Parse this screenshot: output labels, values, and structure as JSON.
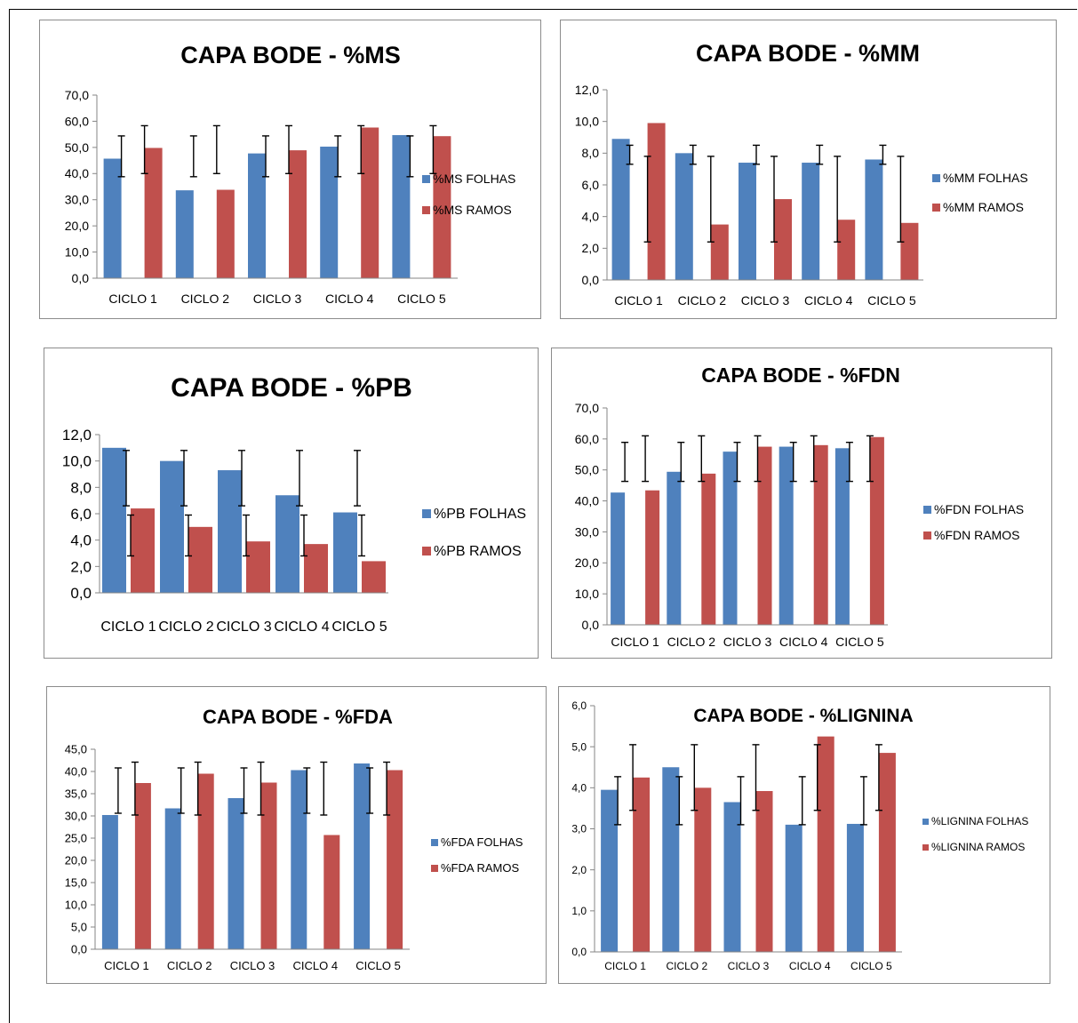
{
  "chart_data": [
    {
      "type": "bar",
      "title": "CAPA BODE - %MS",
      "categories": [
        "CICLO 1",
        "CICLO 2",
        "CICLO 3",
        "CICLO 4",
        "CICLO 5"
      ],
      "ylim": [
        0,
        70
      ],
      "yticks": [
        "0,0",
        "10,0",
        "20,0",
        "30,0",
        "40,0",
        "50,0",
        "60,0",
        "70,0"
      ],
      "legend_position": "right",
      "grid": false,
      "series": [
        {
          "name": "%MS FOLHAS",
          "color": "#4f81bd",
          "values": [
            45.7,
            33.6,
            47.7,
            50.3,
            54.7
          ],
          "error_low": [
            38.8,
            38.8,
            38.8,
            38.8,
            38.8
          ],
          "error_high": [
            54.4,
            54.4,
            54.4,
            54.4,
            54.4
          ]
        },
        {
          "name": "%MS RAMOS",
          "color": "#c0504d",
          "values": [
            49.8,
            33.8,
            48.9,
            57.6,
            54.3
          ],
          "error_low": [
            40.0,
            40.0,
            40.0,
            40.0,
            40.0
          ],
          "error_high": [
            58.3,
            58.3,
            58.3,
            58.3,
            58.3
          ]
        }
      ]
    },
    {
      "type": "bar",
      "title": "CAPA BODE - %MM",
      "categories": [
        "CICLO 1",
        "CICLO 2",
        "CICLO 3",
        "CICLO 4",
        "CICLO 5"
      ],
      "ylim": [
        0,
        12
      ],
      "yticks": [
        "0,0",
        "2,0",
        "4,0",
        "6,0",
        "8,0",
        "10,0",
        "12,0"
      ],
      "legend_position": "right",
      "grid": false,
      "series": [
        {
          "name": "%MM FOLHAS",
          "color": "#4f81bd",
          "values": [
            8.9,
            8.0,
            7.4,
            7.4,
            7.6
          ],
          "error_low": [
            7.3,
            7.3,
            7.3,
            7.3,
            7.3
          ],
          "error_high": [
            8.5,
            8.5,
            8.5,
            8.5,
            8.5
          ]
        },
        {
          "name": "%MM RAMOS",
          "color": "#c0504d",
          "values": [
            9.9,
            3.5,
            5.1,
            3.8,
            3.6
          ],
          "error_low": [
            2.4,
            2.4,
            2.4,
            2.4,
            2.4
          ],
          "error_high": [
            7.8,
            7.8,
            7.8,
            7.8,
            7.8
          ]
        }
      ]
    },
    {
      "type": "bar",
      "title": "CAPA BODE - %PB",
      "categories": [
        "CICLO 1",
        "CICLO 2",
        "CICLO 3",
        "CICLO 4",
        "CICLO 5"
      ],
      "ylim": [
        0,
        12
      ],
      "yticks": [
        "0,0",
        "2,0",
        "4,0",
        "6,0",
        "8,0",
        "10,0",
        "12,0"
      ],
      "legend_position": "right",
      "grid": false,
      "series": [
        {
          "name": "%PB FOLHAS",
          "color": "#4f81bd",
          "values": [
            11.0,
            10.0,
            9.3,
            7.4,
            6.1
          ],
          "error_low": [
            6.6,
            6.6,
            6.6,
            6.6,
            6.6
          ],
          "error_high": [
            10.8,
            10.8,
            10.8,
            10.8,
            10.8
          ]
        },
        {
          "name": "%PB RAMOS",
          "color": "#c0504d",
          "values": [
            6.4,
            5.0,
            3.9,
            3.7,
            2.4
          ],
          "error_low": [
            2.8,
            2.8,
            2.8,
            2.8,
            2.8
          ],
          "error_high": [
            5.9,
            5.9,
            5.9,
            5.9,
            5.9
          ]
        }
      ]
    },
    {
      "type": "bar",
      "title": "CAPA BODE - %FDN",
      "categories": [
        "CICLO 1",
        "CICLO 2",
        "CICLO 3",
        "CICLO 4",
        "CICLO 5"
      ],
      "ylim": [
        0,
        70
      ],
      "yticks": [
        "0,0",
        "10,0",
        "20,0",
        "30,0",
        "40,0",
        "50,0",
        "60,0",
        "70,0"
      ],
      "legend_position": "right",
      "grid": false,
      "series": [
        {
          "name": "%FDN FOLHAS",
          "color": "#4f81bd",
          "values": [
            42.7,
            49.4,
            55.9,
            57.5,
            57.0
          ],
          "error_low": [
            46.3,
            46.3,
            46.3,
            46.3,
            46.3
          ],
          "error_high": [
            58.9,
            58.9,
            58.9,
            58.9,
            58.9
          ]
        },
        {
          "name": "%FDN RAMOS",
          "color": "#c0504d",
          "values": [
            43.4,
            48.8,
            57.5,
            58.0,
            60.6
          ],
          "error_low": [
            46.3,
            46.3,
            46.3,
            46.3,
            46.3
          ],
          "error_high": [
            61.0,
            61.0,
            61.0,
            61.0,
            61.0
          ]
        }
      ]
    },
    {
      "type": "bar",
      "title": "CAPA BODE - %FDA",
      "categories": [
        "CICLO 1",
        "CICLO 2",
        "CICLO 3",
        "CICLO 4",
        "CICLO 5"
      ],
      "ylim": [
        0,
        45
      ],
      "yticks": [
        "0,0",
        "5,0",
        "10,0",
        "15,0",
        "20,0",
        "25,0",
        "30,0",
        "35,0",
        "40,0",
        "45,0"
      ],
      "legend_position": "right",
      "grid": false,
      "series": [
        {
          "name": "%FDA FOLHAS",
          "color": "#4f81bd",
          "values": [
            30.2,
            31.7,
            34.0,
            40.3,
            41.8
          ],
          "error_low": [
            30.6,
            30.6,
            30.6,
            30.6,
            30.6
          ],
          "error_high": [
            40.8,
            40.8,
            40.8,
            40.8,
            40.8
          ]
        },
        {
          "name": "%FDA RAMOS",
          "color": "#c0504d",
          "values": [
            37.4,
            39.5,
            37.5,
            25.7,
            40.3
          ],
          "error_low": [
            30.2,
            30.2,
            30.2,
            30.2,
            30.2
          ],
          "error_high": [
            42.1,
            42.1,
            42.1,
            42.1,
            42.1
          ]
        }
      ]
    },
    {
      "type": "bar",
      "title": "CAPA BODE - %LIGNINA",
      "categories": [
        "CICLO 1",
        "CICLO 2",
        "CICLO 3",
        "CICLO 4",
        "CICLO 5"
      ],
      "ylim": [
        0,
        6
      ],
      "yticks": [
        "0,0",
        "1,0",
        "2,0",
        "3,0",
        "4,0",
        "5,0",
        "6,0"
      ],
      "legend_position": "right",
      "grid": false,
      "series": [
        {
          "name": "%LIGNINA FOLHAS",
          "color": "#4f81bd",
          "values": [
            3.95,
            4.5,
            3.65,
            3.1,
            3.12
          ],
          "error_low": [
            3.1,
            3.1,
            3.1,
            3.1,
            3.1
          ],
          "error_high": [
            4.27,
            4.27,
            4.27,
            4.27,
            4.27
          ]
        },
        {
          "name": "%LIGNINA RAMOS",
          "color": "#c0504d",
          "values": [
            4.25,
            4.0,
            3.92,
            5.25,
            4.85
          ],
          "error_low": [
            3.45,
            3.45,
            3.45,
            3.45,
            3.45
          ],
          "error_high": [
            5.05,
            5.05,
            5.05,
            5.05,
            5.05
          ]
        }
      ]
    }
  ]
}
